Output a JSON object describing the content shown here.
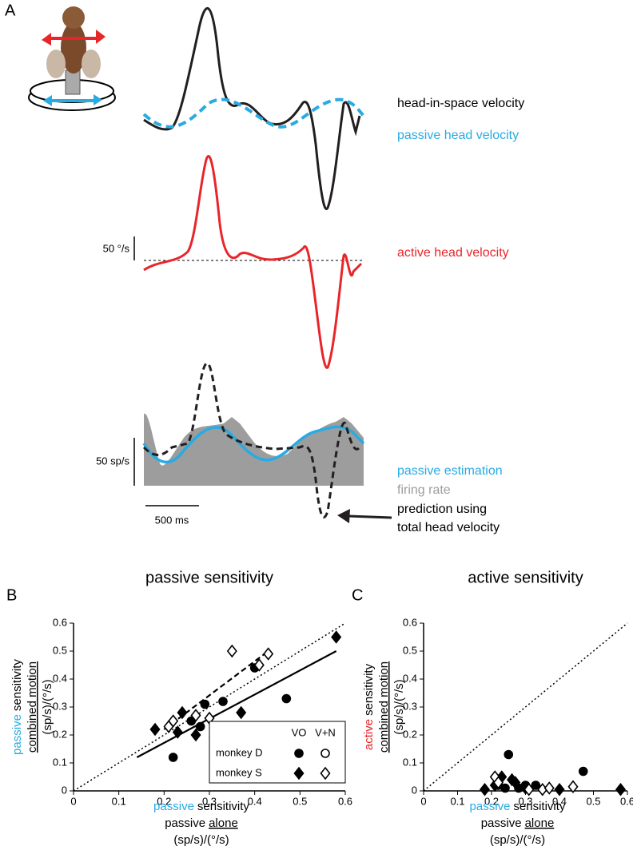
{
  "panel_a": {
    "label": "A",
    "head_in_space": "head-in-space velocity",
    "passive_head": "passive head velocity",
    "active_head": "active head velocity",
    "passive_estimation": "passive estimation",
    "firing_rate": "firing rate",
    "prediction": [
      "prediction using",
      "total head velocity"
    ],
    "scale_velocity": "50 °/s",
    "scale_rate": "50 sp/s",
    "scale_time": "500 ms",
    "colors": {
      "passive": "#29abe2",
      "active": "#e8262a",
      "firing": "#9d9d9d"
    }
  },
  "chart_data": [
    {
      "type": "scatter",
      "panel_label": "B",
      "title": "passive sensitivity",
      "y_label": [
        [
          {
            "text": "passive",
            "color": "#29abe2"
          },
          {
            "text": "sensitivity"
          }
        ],
        [
          {
            "text": "combined motion",
            "underline": true
          }
        ],
        [
          {
            "text": "(sp/s)/(°/s)"
          }
        ]
      ],
      "x_label": [
        [
          {
            "text": "passive",
            "color": "#29abe2"
          },
          {
            "text": "sensitivity"
          }
        ],
        [
          {
            "text": "passive"
          },
          {
            "text": "alone",
            "underline": true
          }
        ],
        [
          {
            "text": "(sp/s)/(°/s)"
          }
        ]
      ],
      "xlim": [
        0,
        0.6
      ],
      "ylim": [
        0,
        0.6
      ],
      "xticks": [
        0,
        0.1,
        0.2,
        0.3,
        0.4,
        0.5,
        0.6
      ],
      "yticks": [
        0,
        0.1,
        0.2,
        0.3,
        0.4,
        0.5,
        0.6
      ],
      "identity_line": true,
      "legend": {
        "columns": [
          "VO",
          "V+N"
        ],
        "rows": [
          "monkey D",
          "monkey S"
        ]
      },
      "series": [
        {
          "marker": "circle",
          "filled": true,
          "color": "#000000",
          "x": [
            0.22,
            0.26,
            0.28,
            0.29,
            0.33,
            0.47,
            0.4
          ],
          "y": [
            0.12,
            0.25,
            0.23,
            0.31,
            0.32,
            0.33,
            0.44
          ]
        },
        {
          "marker": "circle",
          "filled": false,
          "color": "#000000",
          "x": [],
          "y": []
        },
        {
          "marker": "diamond",
          "filled": true,
          "color": "#000000",
          "x": [
            0.18,
            0.23,
            0.24,
            0.27,
            0.31,
            0.37,
            0.58
          ],
          "y": [
            0.22,
            0.21,
            0.28,
            0.2,
            0.19,
            0.28,
            0.55
          ]
        },
        {
          "marker": "diamond",
          "filled": false,
          "color": "#000000",
          "x": [
            0.21,
            0.22,
            0.3,
            0.35,
            0.41,
            0.43,
            0.27
          ],
          "y": [
            0.23,
            0.25,
            0.26,
            0.5,
            0.45,
            0.49,
            0.27
          ]
        }
      ],
      "fit_lines": [
        {
          "style": "solid",
          "x": [
            0.14,
            0.58
          ],
          "y": [
            0.12,
            0.5
          ]
        },
        {
          "style": "dashed",
          "x": [
            0.2,
            0.43
          ],
          "y": [
            0.22,
            0.5
          ]
        }
      ]
    },
    {
      "type": "scatter",
      "panel_label": "C",
      "title": "active sensitivity",
      "y_label": [
        [
          {
            "text": "active",
            "color": "#e8262a"
          },
          {
            "text": "sensitivity"
          }
        ],
        [
          {
            "text": "combined motion",
            "underline": true
          }
        ],
        [
          {
            "text": "(sp/s)/(°/s)"
          }
        ]
      ],
      "x_label": [
        [
          {
            "text": "passive",
            "color": "#29abe2"
          },
          {
            "text": "sensitivity"
          }
        ],
        [
          {
            "text": "passive"
          },
          {
            "text": "alone",
            "underline": true
          }
        ],
        [
          {
            "text": "(sp/s)/(°/s)"
          }
        ]
      ],
      "xlim": [
        0,
        0.6
      ],
      "ylim": [
        0,
        0.6
      ],
      "xticks": [
        0,
        0.1,
        0.2,
        0.3,
        0.4,
        0.5,
        0.6
      ],
      "yticks": [
        0,
        0.1,
        0.2,
        0.3,
        0.4,
        0.5,
        0.6
      ],
      "identity_line": true,
      "series": [
        {
          "marker": "circle",
          "filled": true,
          "color": "#000000",
          "x": [
            0.25,
            0.47,
            0.22,
            0.3,
            0.33,
            0.24,
            0.28
          ],
          "y": [
            0.13,
            0.07,
            0.02,
            0.02,
            0.02,
            0.01,
            0.01
          ]
        },
        {
          "marker": "circle",
          "filled": false,
          "color": "#000000",
          "x": [],
          "y": []
        },
        {
          "marker": "diamond",
          "filled": true,
          "color": "#000000",
          "x": [
            0.18,
            0.23,
            0.26,
            0.21,
            0.3,
            0.4,
            0.58,
            0.27
          ],
          "y": [
            0.005,
            0.05,
            0.04,
            0.02,
            0.01,
            0.005,
            0.005,
            0.03
          ]
        },
        {
          "marker": "diamond",
          "filled": false,
          "color": "#000000",
          "x": [
            0.21,
            0.22,
            0.35,
            0.37,
            0.44,
            0.31
          ],
          "y": [
            0.05,
            0.03,
            0.005,
            0.01,
            0.015,
            0.005
          ]
        }
      ]
    }
  ]
}
